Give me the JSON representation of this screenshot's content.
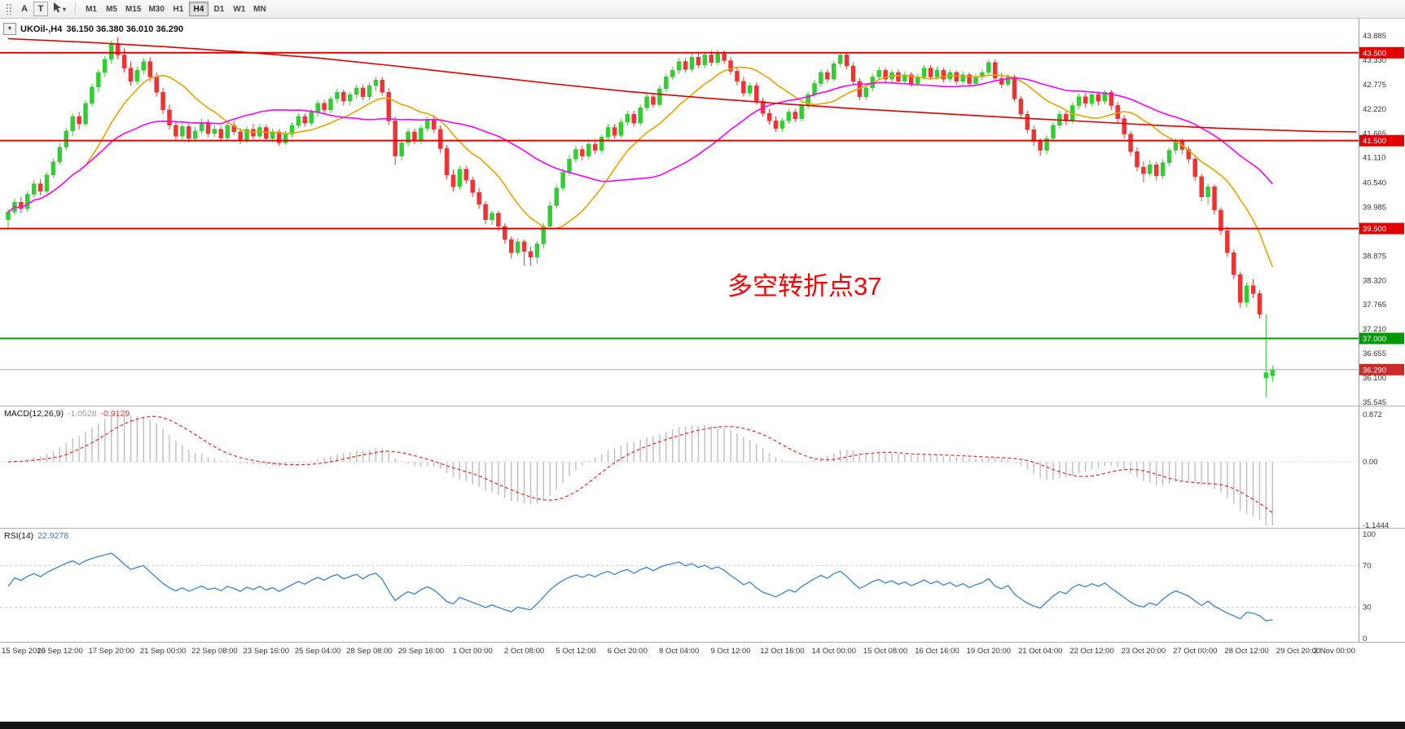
{
  "title_bar": {
    "dropdown_glyph": "▼",
    "symbol_period": "UKOil-,H4",
    "ohlc": "36.150 36.380 36.010 36.290"
  },
  "toolbar": {
    "buttons": [
      {
        "label": "A"
      },
      {
        "label": "T"
      }
    ],
    "cursor_caret": "▾",
    "timeframes": [
      "M1",
      "M5",
      "M15",
      "M30",
      "H1",
      "H4",
      "D1",
      "W1",
      "MN"
    ],
    "active_timeframe": "H4"
  },
  "chart_data": {
    "type": "candlestick",
    "symbol": "UKOil-",
    "period": "H4",
    "colors": {
      "up": "#33cc33",
      "down": "#ee3333"
    },
    "price_axis": {
      "ticks": [
        43.885,
        43.33,
        42.775,
        42.22,
        41.665,
        41.11,
        40.54,
        39.985,
        38.875,
        38.32,
        37.765,
        37.21,
        36.655,
        36.1,
        35.545
      ]
    },
    "candles": [
      [
        39.7,
        39.95,
        39.52,
        39.88
      ],
      [
        39.88,
        40.18,
        39.8,
        40.1
      ],
      [
        40.1,
        40.22,
        39.85,
        39.95
      ],
      [
        39.95,
        40.35,
        39.88,
        40.28
      ],
      [
        40.28,
        40.6,
        40.2,
        40.52
      ],
      [
        40.52,
        40.62,
        40.25,
        40.35
      ],
      [
        40.35,
        40.78,
        40.3,
        40.72
      ],
      [
        40.72,
        41.1,
        40.65,
        41.02
      ],
      [
        41.02,
        41.45,
        40.95,
        41.35
      ],
      [
        41.35,
        41.8,
        41.28,
        41.72
      ],
      [
        41.72,
        42.12,
        41.6,
        42.05
      ],
      [
        42.05,
        42.15,
        41.75,
        41.88
      ],
      [
        41.88,
        42.42,
        41.82,
        42.35
      ],
      [
        42.35,
        42.8,
        42.28,
        42.72
      ],
      [
        42.72,
        43.12,
        42.6,
        43.05
      ],
      [
        43.05,
        43.42,
        42.95,
        43.35
      ],
      [
        43.35,
        43.78,
        43.25,
        43.7
      ],
      [
        43.7,
        43.86,
        43.35,
        43.45
      ],
      [
        43.45,
        43.6,
        43.05,
        43.15
      ],
      [
        43.15,
        43.3,
        42.75,
        42.85
      ],
      [
        42.85,
        43.18,
        42.78,
        43.1
      ],
      [
        43.1,
        43.38,
        43.0,
        43.3
      ],
      [
        43.3,
        43.4,
        42.85,
        42.95
      ],
      [
        42.95,
        43.05,
        42.5,
        42.6
      ],
      [
        42.6,
        42.7,
        42.1,
        42.2
      ],
      [
        42.2,
        42.32,
        41.75,
        41.85
      ],
      [
        41.85,
        41.95,
        41.48,
        41.6
      ],
      [
        41.6,
        41.92,
        41.52,
        41.82
      ],
      [
        41.82,
        41.9,
        41.45,
        41.55
      ],
      [
        41.55,
        41.82,
        41.48,
        41.72
      ],
      [
        41.72,
        42.0,
        41.65,
        41.92
      ],
      [
        41.92,
        41.98,
        41.58,
        41.66
      ],
      [
        41.66,
        41.86,
        41.58,
        41.76
      ],
      [
        41.76,
        41.84,
        41.48,
        41.56
      ],
      [
        41.56,
        41.92,
        41.5,
        41.85
      ],
      [
        41.85,
        41.95,
        41.62,
        41.7
      ],
      [
        41.7,
        41.78,
        41.42,
        41.5
      ],
      [
        41.5,
        41.82,
        41.44,
        41.76
      ],
      [
        41.76,
        41.88,
        41.52,
        41.6
      ],
      [
        41.6,
        41.88,
        41.54,
        41.8
      ],
      [
        41.8,
        41.86,
        41.48,
        41.55
      ],
      [
        41.55,
        41.78,
        41.46,
        41.7
      ],
      [
        41.7,
        41.76,
        41.38,
        41.45
      ],
      [
        41.45,
        41.72,
        41.4,
        41.65
      ],
      [
        41.65,
        41.92,
        41.58,
        41.85
      ],
      [
        41.85,
        42.12,
        41.78,
        42.05
      ],
      [
        42.05,
        42.12,
        41.82,
        41.9
      ],
      [
        41.9,
        42.22,
        41.84,
        42.15
      ],
      [
        42.15,
        42.42,
        42.05,
        42.35
      ],
      [
        42.35,
        42.42,
        42.12,
        42.2
      ],
      [
        42.2,
        42.52,
        42.12,
        42.45
      ],
      [
        42.45,
        42.68,
        42.35,
        42.6
      ],
      [
        42.6,
        42.66,
        42.3,
        42.4
      ],
      [
        42.4,
        42.62,
        42.3,
        42.55
      ],
      [
        42.55,
        42.78,
        42.45,
        42.7
      ],
      [
        42.7,
        42.78,
        42.42,
        42.5
      ],
      [
        42.5,
        42.82,
        42.42,
        42.75
      ],
      [
        42.75,
        42.95,
        42.62,
        42.88
      ],
      [
        42.88,
        42.95,
        42.52,
        42.6
      ],
      [
        42.6,
        42.7,
        41.85,
        41.95
      ],
      [
        41.95,
        42.05,
        40.95,
        41.15
      ],
      [
        41.15,
        41.52,
        41.05,
        41.45
      ],
      [
        41.45,
        41.78,
        41.38,
        41.7
      ],
      [
        41.7,
        41.78,
        41.42,
        41.5
      ],
      [
        41.5,
        41.85,
        41.42,
        41.78
      ],
      [
        41.78,
        42.05,
        41.7,
        41.98
      ],
      [
        41.98,
        42.08,
        41.68,
        41.76
      ],
      [
        41.76,
        41.85,
        41.22,
        41.32
      ],
      [
        41.32,
        41.4,
        40.62,
        40.72
      ],
      [
        40.72,
        40.85,
        40.35,
        40.45
      ],
      [
        40.45,
        40.92,
        40.38,
        40.85
      ],
      [
        40.85,
        40.92,
        40.52,
        40.6
      ],
      [
        40.6,
        40.68,
        40.22,
        40.32
      ],
      [
        40.32,
        40.42,
        39.95,
        40.05
      ],
      [
        40.05,
        40.12,
        39.6,
        39.7
      ],
      [
        39.7,
        39.92,
        39.58,
        39.85
      ],
      [
        39.85,
        39.9,
        39.45,
        39.55
      ],
      [
        39.55,
        39.62,
        39.15,
        39.25
      ],
      [
        39.25,
        39.32,
        38.82,
        38.95
      ],
      [
        38.95,
        39.28,
        38.88,
        39.2
      ],
      [
        39.2,
        39.25,
        38.66,
        38.98
      ],
      [
        38.98,
        39.08,
        38.65,
        38.85
      ],
      [
        38.85,
        39.22,
        38.7,
        39.15
      ],
      [
        39.15,
        39.62,
        39.05,
        39.55
      ],
      [
        39.55,
        40.12,
        39.48,
        40.02
      ],
      [
        40.02,
        40.5,
        39.95,
        40.42
      ],
      [
        40.42,
        40.88,
        40.35,
        40.78
      ],
      [
        40.78,
        41.18,
        40.7,
        41.08
      ],
      [
        41.08,
        41.38,
        41.0,
        41.3
      ],
      [
        41.3,
        41.38,
        41.05,
        41.15
      ],
      [
        41.15,
        41.5,
        41.08,
        41.42
      ],
      [
        41.42,
        41.5,
        41.2,
        41.28
      ],
      [
        41.28,
        41.65,
        41.22,
        41.58
      ],
      [
        41.58,
        41.88,
        41.5,
        41.8
      ],
      [
        41.8,
        41.88,
        41.55,
        41.62
      ],
      [
        41.62,
        42.0,
        41.56,
        41.92
      ],
      [
        41.92,
        42.18,
        41.85,
        42.1
      ],
      [
        42.1,
        42.18,
        41.82,
        41.9
      ],
      [
        41.9,
        42.32,
        41.84,
        42.25
      ],
      [
        42.25,
        42.58,
        42.18,
        42.5
      ],
      [
        42.5,
        42.58,
        42.25,
        42.32
      ],
      [
        42.32,
        42.75,
        42.26,
        42.68
      ],
      [
        42.68,
        43.02,
        42.6,
        42.95
      ],
      [
        42.95,
        43.18,
        42.88,
        43.1
      ],
      [
        43.1,
        43.38,
        43.02,
        43.3
      ],
      [
        43.3,
        43.38,
        43.05,
        43.12
      ],
      [
        43.12,
        43.48,
        43.06,
        43.4
      ],
      [
        43.4,
        43.5,
        43.15,
        43.22
      ],
      [
        43.22,
        43.52,
        43.15,
        43.45
      ],
      [
        43.45,
        43.55,
        43.2,
        43.28
      ],
      [
        43.28,
        43.56,
        43.22,
        43.48
      ],
      [
        43.48,
        43.56,
        43.25,
        43.32
      ],
      [
        43.32,
        43.4,
        43.0,
        43.08
      ],
      [
        43.08,
        43.16,
        42.76,
        42.85
      ],
      [
        42.85,
        42.95,
        42.5,
        42.58
      ],
      [
        42.58,
        42.82,
        42.5,
        42.75
      ],
      [
        42.75,
        42.82,
        42.32,
        42.4
      ],
      [
        42.4,
        42.48,
        42.05,
        42.12
      ],
      [
        42.12,
        42.22,
        41.86,
        41.95
      ],
      [
        41.95,
        42.05,
        41.7,
        41.78
      ],
      [
        41.78,
        42.02,
        41.7,
        41.95
      ],
      [
        41.95,
        42.22,
        41.88,
        42.15
      ],
      [
        42.15,
        42.22,
        41.92,
        42.0
      ],
      [
        42.0,
        42.38,
        41.94,
        42.3
      ],
      [
        42.3,
        42.62,
        42.22,
        42.55
      ],
      [
        42.55,
        42.88,
        42.48,
        42.8
      ],
      [
        42.8,
        43.12,
        42.72,
        43.05
      ],
      [
        43.05,
        43.12,
        42.82,
        42.9
      ],
      [
        42.9,
        43.32,
        42.84,
        43.25
      ],
      [
        43.25,
        43.52,
        43.18,
        43.45
      ],
      [
        43.45,
        43.52,
        43.12,
        43.2
      ],
      [
        43.2,
        43.28,
        42.78,
        42.85
      ],
      [
        42.85,
        42.92,
        42.42,
        42.5
      ],
      [
        42.5,
        42.78,
        42.42,
        42.7
      ],
      [
        42.7,
        43.02,
        42.62,
        42.95
      ],
      [
        42.95,
        43.18,
        42.88,
        43.1
      ],
      [
        43.1,
        43.16,
        42.82,
        42.9
      ],
      [
        42.9,
        43.12,
        42.82,
        43.05
      ],
      [
        43.05,
        43.12,
        42.78,
        42.85
      ],
      [
        42.85,
        43.08,
        42.78,
        43.0
      ],
      [
        43.0,
        43.06,
        42.72,
        42.8
      ],
      [
        42.8,
        43.02,
        42.74,
        42.95
      ],
      [
        42.95,
        43.22,
        42.88,
        43.15
      ],
      [
        43.15,
        43.22,
        42.88,
        42.95
      ],
      [
        42.95,
        43.18,
        42.88,
        43.1
      ],
      [
        43.1,
        43.16,
        42.82,
        42.9
      ],
      [
        42.9,
        43.12,
        42.84,
        43.05
      ],
      [
        43.05,
        43.1,
        42.78,
        42.85
      ],
      [
        42.85,
        43.08,
        42.78,
        43.0
      ],
      [
        43.0,
        43.05,
        42.72,
        42.8
      ],
      [
        42.8,
        43.02,
        42.74,
        42.95
      ],
      [
        42.95,
        43.12,
        42.88,
        43.05
      ],
      [
        43.05,
        43.35,
        42.98,
        43.28
      ],
      [
        43.28,
        43.35,
        42.85,
        42.92
      ],
      [
        42.92,
        43.05,
        42.7,
        42.78
      ],
      [
        42.78,
        43.02,
        42.72,
        42.95
      ],
      [
        42.95,
        43.0,
        42.38,
        42.45
      ],
      [
        42.45,
        42.52,
        42.02,
        42.1
      ],
      [
        42.1,
        42.18,
        41.66,
        41.75
      ],
      [
        41.75,
        41.85,
        41.38,
        41.48
      ],
      [
        41.48,
        41.55,
        41.15,
        41.28
      ],
      [
        41.28,
        41.62,
        41.2,
        41.55
      ],
      [
        41.55,
        41.92,
        41.48,
        41.85
      ],
      [
        41.85,
        42.18,
        41.78,
        42.1
      ],
      [
        42.1,
        42.18,
        41.85,
        41.95
      ],
      [
        41.95,
        42.38,
        41.88,
        42.3
      ],
      [
        42.3,
        42.58,
        42.22,
        42.5
      ],
      [
        42.5,
        42.58,
        42.25,
        42.35
      ],
      [
        42.35,
        42.62,
        42.28,
        42.55
      ],
      [
        42.55,
        42.62,
        42.3,
        42.4
      ],
      [
        42.4,
        42.66,
        42.32,
        42.6
      ],
      [
        42.6,
        42.65,
        42.2,
        42.3
      ],
      [
        42.3,
        42.38,
        41.9,
        42.0
      ],
      [
        42.0,
        42.08,
        41.55,
        41.65
      ],
      [
        41.65,
        41.72,
        41.15,
        41.25
      ],
      [
        41.25,
        41.35,
        40.8,
        40.9
      ],
      [
        40.9,
        41.02,
        40.55,
        40.75
      ],
      [
        40.75,
        41.05,
        40.68,
        40.95
      ],
      [
        40.95,
        41.02,
        40.6,
        40.7
      ],
      [
        40.7,
        41.08,
        40.62,
        41.0
      ],
      [
        41.0,
        41.35,
        40.92,
        41.28
      ],
      [
        41.28,
        41.55,
        41.2,
        41.48
      ],
      [
        41.48,
        41.55,
        41.2,
        41.3
      ],
      [
        41.3,
        41.38,
        40.98,
        41.08
      ],
      [
        41.08,
        41.15,
        40.58,
        40.68
      ],
      [
        40.68,
        40.75,
        40.12,
        40.22
      ],
      [
        40.22,
        40.52,
        40.05,
        40.45
      ],
      [
        40.45,
        40.5,
        39.82,
        39.92
      ],
      [
        39.92,
        39.98,
        39.35,
        39.45
      ],
      [
        39.45,
        39.55,
        38.85,
        38.95
      ],
      [
        38.95,
        39.02,
        38.35,
        38.45
      ],
      [
        38.45,
        38.52,
        37.7,
        37.82
      ],
      [
        37.82,
        38.28,
        37.72,
        38.2
      ],
      [
        38.2,
        38.35,
        37.92,
        38.02
      ],
      [
        38.02,
        38.1,
        37.45,
        37.55
      ],
      [
        36.1,
        37.55,
        35.65,
        36.22
      ],
      [
        36.15,
        36.38,
        36.01,
        36.29
      ]
    ],
    "moving_averages": [
      {
        "name": "fast-ma",
        "period": 13,
        "color": "#e8a200"
      },
      {
        "name": "mid-ma",
        "period": 34,
        "color": "#ff00ff"
      }
    ],
    "trend_curve": {
      "color": "#d80000",
      "points": [
        [
          0,
          43.82
        ],
        [
          12,
          43.74
        ],
        [
          24,
          43.64
        ],
        [
          36,
          43.52
        ],
        [
          48,
          43.38
        ],
        [
          60,
          43.2
        ],
        [
          72,
          43.0
        ],
        [
          84,
          42.8
        ],
        [
          96,
          42.62
        ],
        [
          108,
          42.47
        ],
        [
          120,
          42.34
        ],
        [
          132,
          42.22
        ],
        [
          144,
          42.12
        ],
        [
          156,
          42.02
        ],
        [
          168,
          41.93
        ],
        [
          178,
          41.85
        ],
        [
          188,
          41.78
        ],
        [
          196,
          41.74
        ],
        [
          203,
          41.71
        ],
        [
          209,
          41.7
        ]
      ]
    },
    "hlines": [
      {
        "price": 43.5,
        "label": "43.500",
        "color": "#e00000",
        "width": 2
      },
      {
        "price": 41.5,
        "label": "41.500",
        "color": "#e00000",
        "width": 2
      },
      {
        "price": 39.5,
        "label": "39.500",
        "color": "#e00000",
        "width": 2
      },
      {
        "price": 37.0,
        "label": "37.000",
        "color": "#009a00",
        "width": 2
      }
    ],
    "bid": {
      "price": 36.29,
      "label": "36.290",
      "line_color": "#9aa8b8",
      "badge_color": "#cc2a2a"
    },
    "annotation": {
      "text": "多空转折点37",
      "color": "#fe0000"
    },
    "macd": {
      "title": "MACD(12,26,9)",
      "value_main": "-1.0528",
      "value_signal": "-0.9129",
      "fast": 12,
      "slow": 26,
      "signal": 9,
      "axis_max": "0.872",
      "axis_zero": "0.00",
      "axis_min": "-1.1444",
      "hist_color": "#bdbdbd",
      "signal_color": "#e02828"
    },
    "rsi": {
      "title": "RSI(14)",
      "value": "22.9278",
      "period": 14,
      "levels": [
        70,
        30
      ],
      "axis_labels": [
        "100",
        "70",
        "30",
        "0"
      ],
      "color": "#3c82c8"
    },
    "time_axis": {
      "labels": [
        "15 Sep 2020",
        "16 Sep 12:00",
        "17 Sep 20:00",
        "21 Sep 00:00",
        "22 Sep 08:00",
        "23 Sep 16:00",
        "25 Sep 04:00",
        "28 Sep 08:00",
        "29 Sep 16:00",
        "1 Oct 00:00",
        "2 Oct 08:00",
        "5 Oct 12:00",
        "6 Oct 20:00",
        "8 Oct 04:00",
        "9 Oct 12:00",
        "12 Oct 16:00",
        "14 Oct 00:00",
        "15 Oct 08:00",
        "16 Oct 16:00",
        "19 Oct 20:00",
        "21 Oct 04:00",
        "22 Oct 12:00",
        "23 Oct 20:00",
        "27 Oct 00:00",
        "28 Oct 12:00",
        "29 Oct 20:00",
        "2 Nov 00:00"
      ]
    }
  }
}
